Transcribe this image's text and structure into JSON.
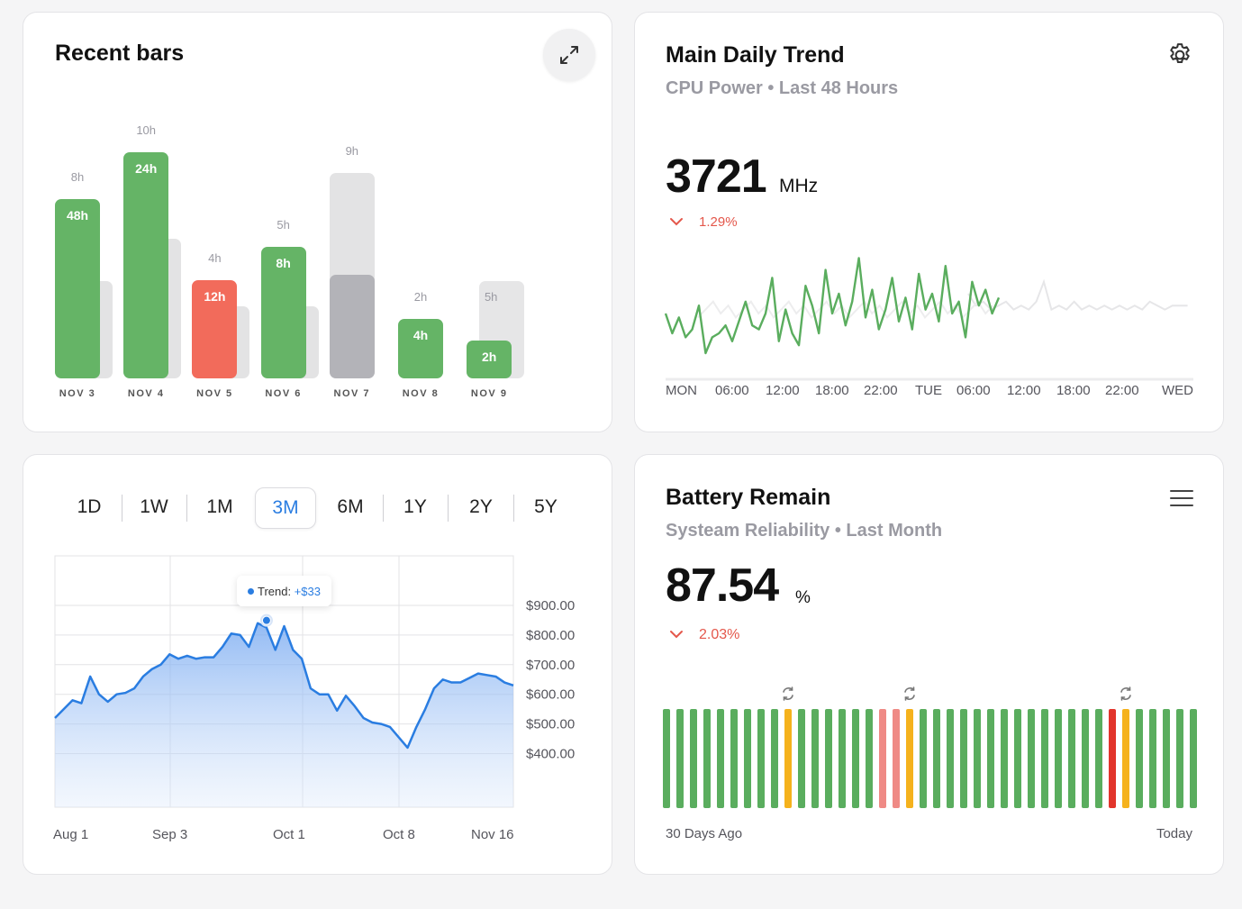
{
  "recent_bars": {
    "title": "Recent bars",
    "expand_icon": "expand-icon",
    "chart_data": {
      "type": "bar",
      "categories": [
        "NOV 3",
        "NOV 4",
        "NOV 5",
        "NOV 6",
        "NOV 7",
        "NOV 8",
        "NOV 9"
      ],
      "series": [
        {
          "values": [
            48,
            24,
            12,
            8,
            null,
            4,
            2
          ],
          "labels": [
            "48h",
            "24h",
            "12h",
            "8h",
            "",
            "4h",
            "2h"
          ]
        },
        {
          "values": [
            8,
            10,
            4,
            5,
            9,
            2,
            5
          ],
          "labels": [
            "8h",
            "10h",
            "4h",
            "5h",
            "9h",
            "2h",
            "5h"
          ]
        }
      ],
      "bar_colors": [
        "#65b466",
        "#65b466",
        "#f26b5b",
        "#65b466",
        "#b3b3b8",
        "#65b466",
        "#65b466"
      ]
    }
  },
  "main_trend": {
    "title": "Main Daily Trend",
    "subtitle": "CPU Power • Last 48 Hours",
    "value": "3721",
    "unit": "MHz",
    "delta": "1.29%",
    "delta_direction": "down",
    "settings_icon": "gear-icon",
    "chart_data": {
      "type": "line",
      "x_labels": [
        "MON",
        "06:00",
        "12:00",
        "18:00",
        "22:00",
        "TUE",
        "06:00",
        "12:00",
        "18:00",
        "22:00",
        "WED"
      ],
      "series": [
        {
          "values": [
            35,
            30,
            34,
            29,
            31,
            37,
            25,
            29,
            30,
            32,
            28,
            33,
            38,
            32,
            31,
            35,
            44,
            28,
            36,
            30,
            27,
            42,
            37,
            30,
            46,
            35,
            40,
            32,
            38,
            49,
            34,
            41,
            31,
            36,
            44,
            33,
            39,
            31,
            45,
            36,
            40,
            33,
            47,
            35,
            38,
            29,
            43,
            37,
            41,
            35,
            39
          ]
        },
        {
          "values": [
            40,
            37,
            38,
            36,
            37,
            38,
            36,
            37,
            36,
            38,
            43,
            36,
            37,
            36,
            38,
            36,
            37,
            36,
            37,
            36,
            37,
            36,
            37,
            36,
            38,
            37,
            36,
            37,
            37,
            37
          ]
        }
      ],
      "line_colors": [
        "#5aad5e",
        "#e6e6e8"
      ]
    }
  },
  "price": {
    "tabs": [
      "1D",
      "1W",
      "1M",
      "3M",
      "6M",
      "1Y",
      "2Y",
      "5Y"
    ],
    "active_tab": "3M",
    "tooltip_label": "Trend:",
    "tooltip_value": "+$33",
    "chart_data": {
      "type": "area",
      "x_labels": [
        "Aug 1",
        "Sep 3",
        "Oct 1",
        "Oct 8",
        "Nov 16"
      ],
      "y_labels": [
        "$900.00",
        "$800.00",
        "$700.00",
        "$600.00",
        "$500.00",
        "$400.00"
      ],
      "ylim": [
        300,
        1000
      ],
      "values": [
        520,
        550,
        580,
        570,
        660,
        600,
        575,
        600,
        605,
        620,
        660,
        685,
        700,
        735,
        720,
        730,
        720,
        725,
        725,
        760,
        805,
        800,
        760,
        840,
        825,
        750,
        830,
        750,
        720,
        620,
        600,
        600,
        545,
        595,
        560,
        520,
        505,
        500,
        490,
        455,
        420,
        490,
        550,
        620,
        650,
        640,
        640,
        655,
        670,
        665,
        660,
        640,
        630
      ],
      "tooltip_index": 24,
      "line_color": "#2a7de1"
    }
  },
  "battery": {
    "title": "Battery Remain",
    "subtitle": "Systeam Reliability • Last Month",
    "value": "87.54",
    "unit": "%",
    "delta": "2.03%",
    "delta_direction": "down",
    "menu_icon": "menu-icon",
    "start_label": "30 Days Ago",
    "end_label": "Today",
    "chart_data": {
      "type": "bar",
      "values": [
        "good",
        "good",
        "good",
        "good",
        "good",
        "good",
        "good",
        "good",
        "good",
        "warn",
        "good",
        "good",
        "good",
        "good",
        "good",
        "good",
        "bad",
        "bad",
        "warn",
        "good",
        "good",
        "good",
        "good",
        "good",
        "good",
        "good",
        "good",
        "good",
        "good",
        "good",
        "good",
        "good",
        "good",
        "crit",
        "warn",
        "good",
        "good",
        "good",
        "good",
        "good"
      ],
      "restart_icons_at": [
        9,
        18,
        34
      ]
    }
  }
}
